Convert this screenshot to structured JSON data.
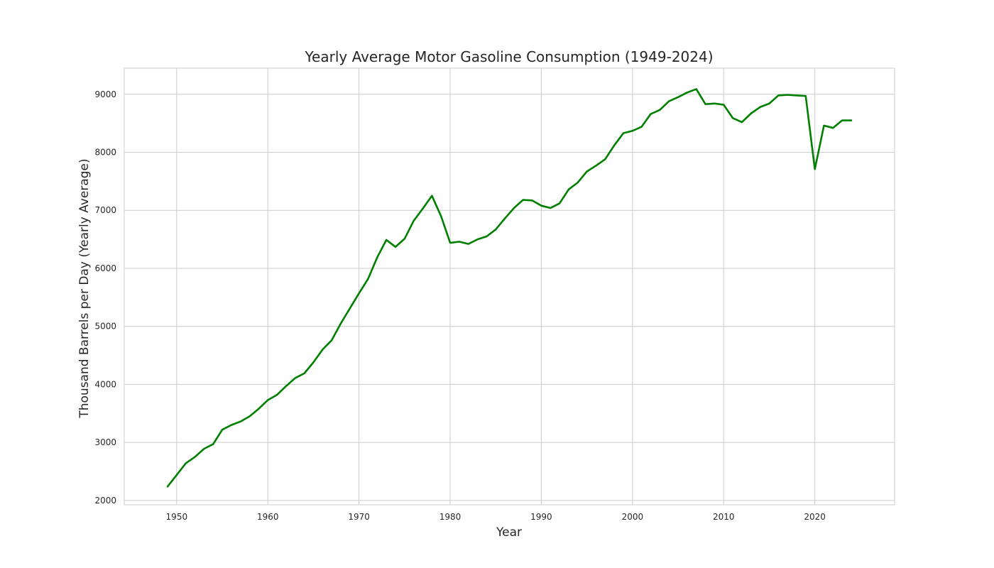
{
  "chart_data": {
    "type": "line",
    "title": "Yearly Average Motor Gasoline Consumption (1949-2024)",
    "xlabel": "Year",
    "ylabel": "Thousand Barrels per Day (Yearly Average)",
    "xlim": [
      1944.25,
      2028.75
    ],
    "ylim": [
      1925,
      9450
    ],
    "xticks": [
      1950,
      1960,
      1970,
      1980,
      1990,
      2000,
      2010,
      2020
    ],
    "yticks": [
      2000,
      3000,
      4000,
      5000,
      6000,
      7000,
      8000,
      9000
    ],
    "grid": true,
    "line_color": "#008000",
    "background": "#ffffff",
    "grid_color": "#cccccc",
    "series": [
      {
        "x": [
          1949,
          1950,
          1951,
          1952,
          1953,
          1954,
          1955,
          1956,
          1957,
          1958,
          1959,
          1960,
          1961,
          1962,
          1963,
          1964,
          1965,
          1966,
          1967,
          1968,
          1969,
          1970,
          1971,
          1972,
          1973,
          1974,
          1975,
          1976,
          1977,
          1978,
          1979,
          1980,
          1981,
          1982,
          1983,
          1984,
          1985,
          1986,
          1987,
          1988,
          1989,
          1990,
          1991,
          1992,
          1993,
          1994,
          1995,
          1996,
          1997,
          1998,
          1999,
          2000,
          2001,
          2002,
          2003,
          2004,
          2005,
          2006,
          2007,
          2008,
          2009,
          2010,
          2011,
          2012,
          2013,
          2014,
          2015,
          2016,
          2017,
          2018,
          2019,
          2020,
          2021,
          2022,
          2023,
          2024
        ],
        "values": [
          2240,
          2440,
          2640,
          2750,
          2890,
          2970,
          3220,
          3300,
          3360,
          3450,
          3580,
          3730,
          3820,
          3970,
          4110,
          4190,
          4380,
          4600,
          4760,
          5050,
          5310,
          5570,
          5820,
          6190,
          6490,
          6370,
          6510,
          6820,
          7030,
          7250,
          6900,
          6440,
          6460,
          6420,
          6500,
          6550,
          6670,
          6860,
          7040,
          7180,
          7170,
          7080,
          7040,
          7120,
          7360,
          7480,
          7670,
          7770,
          7880,
          8120,
          8330,
          8370,
          8440,
          8660,
          8730,
          8880,
          8950,
          9030,
          9090,
          8830,
          8840,
          8820,
          8590,
          8520,
          8670,
          8780,
          8840,
          8980,
          8990,
          8980,
          8970,
          7710,
          8460,
          8420,
          8550,
          8550
        ]
      }
    ]
  }
}
